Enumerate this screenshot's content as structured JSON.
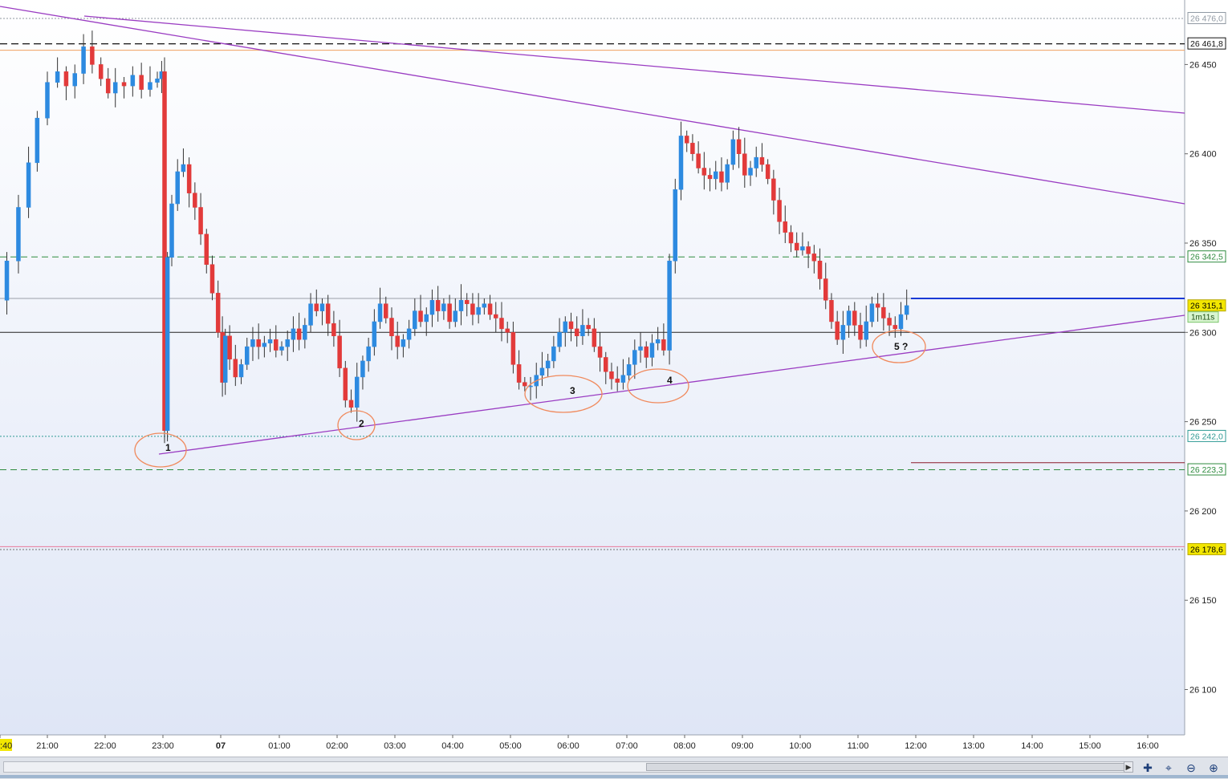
{
  "chart_data": {
    "type": "candlestick",
    "y_axis_ticks": [
      26450,
      26400,
      26350,
      26300,
      26250,
      26200,
      26150,
      26100
    ],
    "y_axis_tick_labels": [
      "26 450",
      "26 400",
      "26 350",
      "26 300",
      "26 250",
      "26 200",
      "26 150",
      "26 100"
    ],
    "x_axis_labels": [
      ":40",
      "21:00",
      "22:00",
      "23:00",
      "07",
      "01:00",
      "02:00",
      "03:00",
      "04:00",
      "05:00",
      "06:00",
      "07:00",
      "08:00",
      "09:00",
      "10:00",
      "11:00",
      "12:00",
      "13:00",
      "14:00",
      "15:00",
      "16:00"
    ],
    "price_levels": [
      {
        "value": 26476.0,
        "label": "26 476,0",
        "style": "dotted",
        "color": "#8f98a2"
      },
      {
        "value": 26461.8,
        "label": "26 461,8",
        "style": "dashed",
        "color": "#111111"
      },
      {
        "value": 26342.5,
        "label": "26 342,5",
        "style": "dashed",
        "color": "#2e8b3e"
      },
      {
        "value": 26315.1,
        "label": "26 315,1",
        "style": "solid",
        "color": "#f2e600"
      },
      {
        "value": 26242.0,
        "label": "26 242,0",
        "style": "dotted",
        "color": "#2e9a94"
      },
      {
        "value": 26223.3,
        "label": "26 223,3",
        "style": "dashed",
        "color": "#2e8b3e"
      },
      {
        "value": 26178.6,
        "label": "26 178,6",
        "style": "dotted",
        "color": "#f2e600"
      }
    ],
    "timer_label": "1m11s",
    "annotations": [
      "1",
      "2",
      "3",
      "4",
      "5 ?"
    ],
    "colors": {
      "up": "#2d8ae0",
      "down": "#e23a3a",
      "trendline": "#9a3cc2",
      "circle": "#f08a5d"
    }
  },
  "toolbar": {
    "icons": [
      "add-indicator-icon",
      "auto-scale-icon",
      "zoom-out-icon",
      "zoom-in-icon"
    ]
  }
}
